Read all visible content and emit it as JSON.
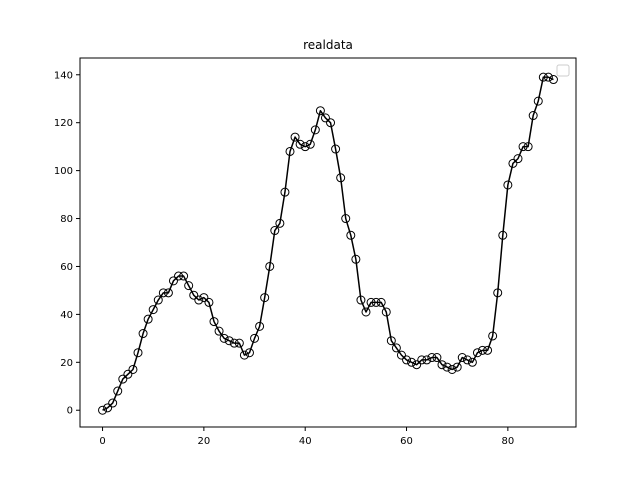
{
  "chart_data": {
    "type": "line",
    "title": "realdata",
    "xlabel": "",
    "ylabel": "",
    "xlim": [
      -4.45,
      93.45
    ],
    "ylim": [
      -7,
      147
    ],
    "xticks": [
      0,
      20,
      40,
      60,
      80
    ],
    "yticks": [
      0,
      20,
      40,
      60,
      80,
      100,
      120,
      140
    ],
    "grid": false,
    "legend": {
      "placement": "top-right",
      "entries": []
    },
    "series": [
      {
        "color": "#000000",
        "marker": "open-circle",
        "x": [
          0,
          1,
          2,
          3,
          4,
          5,
          6,
          7,
          8,
          9,
          10,
          11,
          12,
          13,
          14,
          15,
          16,
          17,
          18,
          19,
          20,
          21,
          22,
          23,
          24,
          25,
          26,
          27,
          28,
          29,
          30,
          31,
          32,
          33,
          34,
          35,
          36,
          37,
          38,
          39,
          40,
          41,
          42,
          43,
          44,
          45,
          46,
          47,
          48,
          49,
          50,
          51,
          52,
          53,
          54,
          55,
          56,
          57,
          58,
          59,
          60,
          61,
          62,
          63,
          64,
          65,
          66,
          67,
          68,
          69,
          70,
          71,
          72,
          73,
          74,
          75,
          76,
          77,
          78,
          79,
          80,
          81,
          82,
          83,
          84,
          85,
          86,
          87,
          88,
          89
        ],
        "y": [
          0,
          1,
          3,
          8,
          13,
          15,
          17,
          24,
          32,
          38,
          42,
          46,
          49,
          49,
          54,
          56,
          56,
          52,
          48,
          46,
          47,
          45,
          37,
          33,
          30,
          29,
          28,
          28,
          23,
          24,
          30,
          35,
          47,
          60,
          75,
          78,
          91,
          108,
          114,
          111,
          110,
          111,
          117,
          125,
          122,
          120,
          109,
          97,
          80,
          73,
          63,
          46,
          41,
          45,
          45,
          45,
          41,
          29,
          26,
          23,
          21,
          20,
          19,
          21,
          21,
          22,
          22,
          19,
          18,
          17,
          18,
          22,
          21,
          20,
          24,
          25,
          25,
          31,
          49,
          73,
          94,
          103,
          105,
          110,
          110,
          123,
          129,
          139,
          139,
          138
        ]
      }
    ]
  }
}
